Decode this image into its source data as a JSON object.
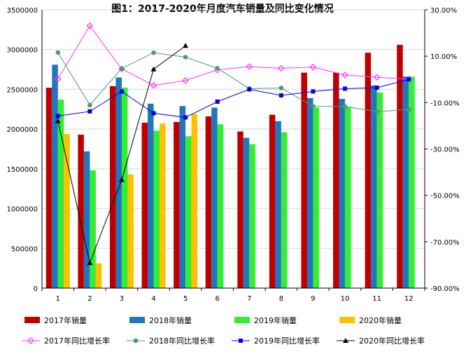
{
  "chart_data": {
    "type": "bar",
    "title": "图1：2017-2020年月度汽车销量及同比变化情况",
    "categories": [
      "1",
      "2",
      "3",
      "4",
      "5",
      "6",
      "7",
      "8",
      "9",
      "10",
      "11",
      "12"
    ],
    "ylim": [
      0,
      3500000
    ],
    "y_ticks": [
      "0",
      "500000",
      "1000000",
      "1500000",
      "2000000",
      "2500000",
      "3000000",
      "3500000"
    ],
    "y2lim": [
      -90,
      30
    ],
    "y2_ticks": [
      "-90.00%",
      "-70.00%",
      "-50.00%",
      "-30.00%",
      "-10.00%",
      "10.00%",
      "30.00%"
    ],
    "grid": true,
    "legend_position": "bottom",
    "bar_series": [
      {
        "name": "2017年销量",
        "color": "#C00000",
        "values": [
          2520000,
          1930000,
          2540000,
          2080000,
          2090000,
          2160000,
          1970000,
          2180000,
          2710000,
          2710000,
          2960000,
          3060000
        ]
      },
      {
        "name": "2018年销量",
        "color": "#1F77C0",
        "values": [
          2810000,
          1720000,
          2650000,
          2320000,
          2290000,
          2270000,
          1890000,
          2100000,
          2390000,
          2380000,
          2550000,
          2660000
        ]
      },
      {
        "name": "2019年销量",
        "color": "#33EE33",
        "values": [
          2370000,
          1480000,
          2520000,
          1980000,
          1910000,
          2060000,
          1810000,
          1960000,
          2270000,
          2280000,
          2460000,
          2660000
        ]
      },
      {
        "name": "2020年销量",
        "color": "#FFC000",
        "values": [
          1940000,
          310000,
          1430000,
          2070000,
          2190000,
          null,
          null,
          null,
          null,
          null,
          null,
          null
        ]
      }
    ],
    "line_series": [
      {
        "name": "2017年同比增长率",
        "color": "#FF33FF",
        "marker": "diamond",
        "values": [
          0.2,
          23.1,
          4.5,
          -2.6,
          -0.5,
          4.1,
          5.5,
          4.8,
          5.3,
          1.9,
          0.9,
          0.1
        ]
      },
      {
        "name": "2018年同比增长率",
        "color": "#4C9A78",
        "marker": "circle",
        "values": [
          11.6,
          -11.1,
          4.7,
          11.5,
          9.6,
          4.8,
          -4.0,
          -3.7,
          -11.6,
          -11.7,
          -13.9,
          -13.0
        ]
      },
      {
        "name": "2019年同比增长率",
        "color": "#0000EE",
        "marker": "square",
        "values": [
          -15.8,
          -13.8,
          -5.2,
          -14.6,
          -16.4,
          -9.6,
          -4.3,
          -6.9,
          -5.2,
          -4.0,
          -3.6,
          0.0
        ]
      },
      {
        "name": "2020年同比增长率",
        "color": "#000000",
        "marker": "triangle",
        "values": [
          -18.0,
          -79.1,
          -43.3,
          4.4,
          14.5,
          null,
          null,
          null,
          null,
          null,
          null,
          null
        ]
      }
    ]
  }
}
